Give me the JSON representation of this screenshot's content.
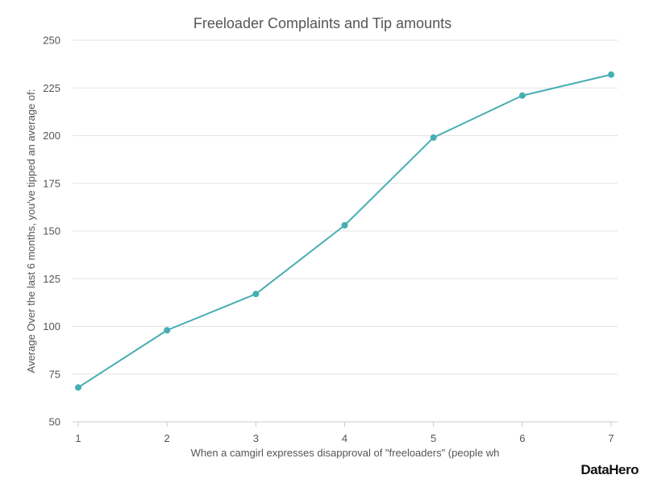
{
  "chart_data": {
    "type": "line",
    "title": "Freeloader Complaints and Tip amounts",
    "xlabel": "When a camgirl expresses disapproval of \"freeloaders\" (people wh",
    "ylabel": "Average Over the last 6 months, you've tipped an average of:",
    "x": [
      1,
      2,
      3,
      4,
      5,
      6,
      7
    ],
    "x_tick_labels": [
      "1",
      "2",
      "3",
      "4",
      "5",
      "6",
      "7"
    ],
    "xlim": [
      1,
      7
    ],
    "ylim": [
      50,
      250
    ],
    "y_ticks": [
      50,
      75,
      100,
      125,
      150,
      175,
      200,
      225,
      250
    ],
    "y_tick_labels": [
      "50",
      "75",
      "100",
      "125",
      "150",
      "175",
      "200",
      "225",
      "250"
    ],
    "series": [
      {
        "values": [
          68,
          98,
          117,
          153,
          199,
          221,
          232
        ]
      }
    ],
    "grid": true,
    "legend": "none"
  },
  "colors": {
    "line": "#46aeb3",
    "marker": "#46aeb3",
    "text": "#555555",
    "grid": "#e3e3e3"
  },
  "brand": {
    "logo": "DataHero"
  }
}
